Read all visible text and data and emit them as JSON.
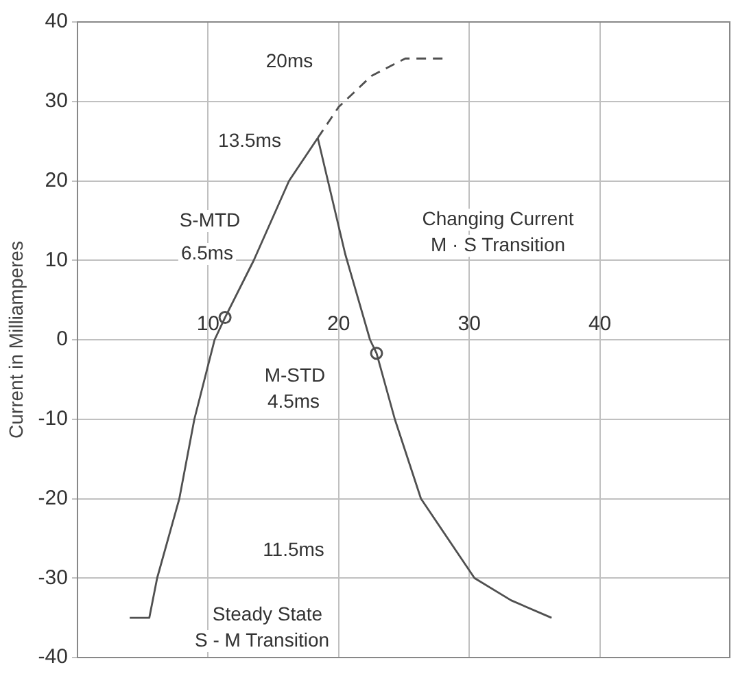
{
  "chart_data": {
    "type": "line",
    "ylabel": "Current in Milliamperes",
    "xlim": [
      0,
      50
    ],
    "xticks": [
      10,
      20,
      30,
      40
    ],
    "ylim": [
      -40,
      40
    ],
    "yticks": [
      -40,
      -30,
      -20,
      -10,
      0,
      10,
      20,
      30,
      40
    ],
    "grid": true,
    "legend": false,
    "marker": "none",
    "series": [
      {
        "color": "#505050",
        "line_style": "solid",
        "x": [
          4,
          5.5,
          6.1,
          7.8,
          8.95,
          10.5,
          11.3,
          13.5,
          16.2,
          18.4
        ],
        "values": [
          -35,
          -35,
          -30,
          -20,
          -10,
          0,
          2.8,
          10,
          20,
          25.4
        ]
      },
      {
        "color": "#505050",
        "line_style": "dashed",
        "x": [
          18.4,
          20,
          22.5,
          25.1,
          28.2
        ],
        "values": [
          25.4,
          29.3,
          33.2,
          35.4,
          35.4
        ]
      },
      {
        "color": "#505050",
        "line_style": "solid",
        "x": [
          18.4,
          20.5,
          22.4,
          22.9,
          24.3,
          26.3,
          30.4,
          33.2,
          36.3
        ],
        "values": [
          25.4,
          10.8,
          0,
          -1.7,
          -10,
          -20,
          -30,
          -32.8,
          -35
        ]
      },
      {
        "type": "scatter",
        "marker": "circle",
        "color": "#505050",
        "x": [
          11.3,
          22.9
        ],
        "values": [
          2.8,
          -1.7
        ]
      }
    ],
    "annotations": [
      "20ms",
      "13.5ms",
      "S-MTD",
      "6.5ms",
      "Changing Current",
      "M · S Transition",
      "M-STD",
      "4.5ms",
      "11.5ms",
      "Steady State",
      "S - M Transition"
    ]
  }
}
